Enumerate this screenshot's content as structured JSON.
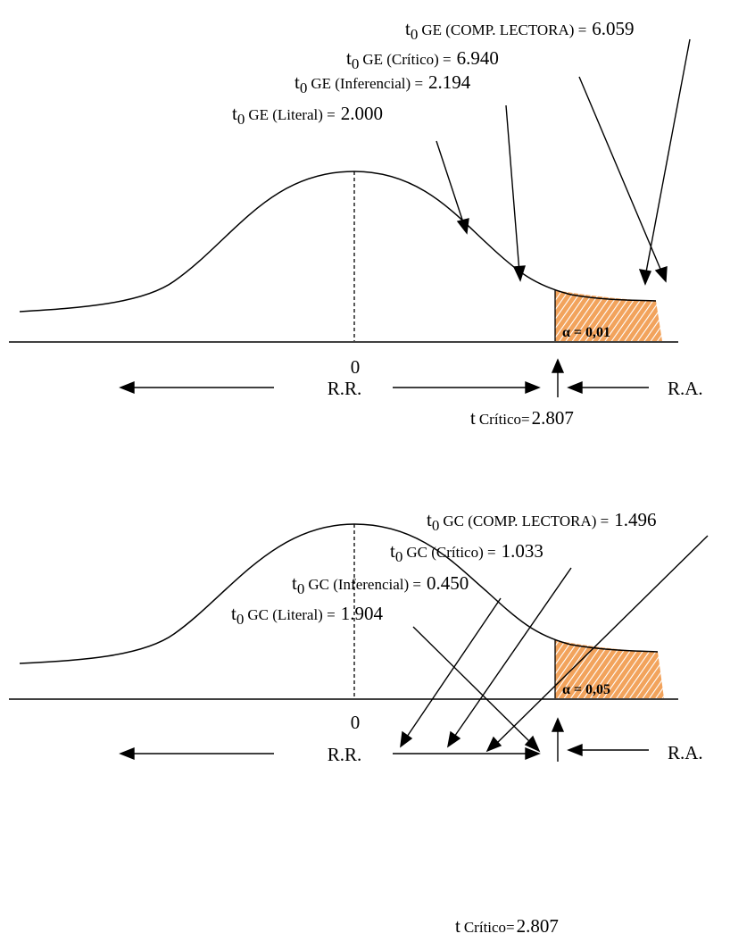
{
  "colors": {
    "rejection_fill": "#f2a35c",
    "rejection_hatch": "#ffffff",
    "stroke": "#000000"
  },
  "panels": [
    {
      "group": "GE",
      "alpha_label": "α = 0,01",
      "zero_label": "0",
      "rr_label": "R.R.",
      "ra_label": "R.A.",
      "t_critico": {
        "prefix": "t",
        "word": "Crítico=",
        "value": "2.807"
      },
      "labels": [
        {
          "sub": "0",
          "name": "GE (COMP. LECTORA) =",
          "value": "6.059"
        },
        {
          "sub": "0",
          "name": "GE (Crítico) =",
          "value": "6.940"
        },
        {
          "sub": "0",
          "name": "GE (Inferencial) =",
          "value": "2.194"
        },
        {
          "sub": "0",
          "name": "GE (Literal) =",
          "value": "2.000"
        }
      ]
    },
    {
      "group": "GC",
      "alpha_label": "α = 0,05",
      "zero_label": "0",
      "rr_label": "R.R.",
      "ra_label": "R.A.",
      "t_critico": {
        "prefix": "t",
        "word": "Crítico=",
        "value": "2.807"
      },
      "labels": [
        {
          "sub": "0",
          "name": "GC (COMP. LECTORA) =",
          "value": "1.496"
        },
        {
          "sub": "0",
          "name": "GC (Crítico) =",
          "value": "1.033"
        },
        {
          "sub": "0",
          "name": "GC (Inferencial) =",
          "value": "0.450"
        },
        {
          "sub": "0",
          "name": "GC (Literal) =",
          "value": "1.904"
        }
      ]
    }
  ]
}
